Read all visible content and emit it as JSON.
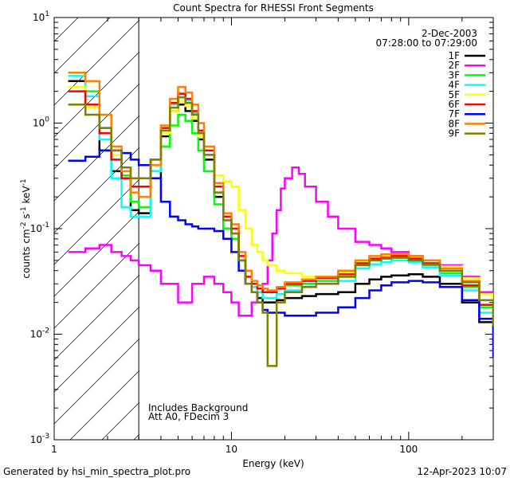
{
  "chart_data": {
    "type": "line",
    "title": "Count Spectra for RHESSI Front Segments",
    "xlabel": "Energy (keV)",
    "ylabel_parts": [
      "counts cm",
      "-2",
      " s",
      "-1",
      " keV",
      "-1"
    ],
    "xscale": "log",
    "yscale": "log",
    "xlim": [
      1,
      300
    ],
    "ylim": [
      0.001,
      10
    ],
    "x_ticks": [
      {
        "value": 1,
        "label": "1"
      },
      {
        "value": 10,
        "label": "10"
      },
      {
        "value": 100,
        "label": "100"
      }
    ],
    "y_ticks": [
      {
        "exp": -3,
        "base": "10",
        "sup": "-3"
      },
      {
        "exp": -2,
        "base": "10",
        "sup": "-2"
      },
      {
        "exp": -1,
        "base": "10",
        "sup": "-1"
      },
      {
        "exp": 0,
        "base": "10",
        "sup": "0"
      },
      {
        "exp": 1,
        "base": "10",
        "sup": "1"
      }
    ],
    "date": "2-Dec-2003",
    "time_range": "07:28:00 to 07:29:00",
    "annotations": [
      "Includes Background",
      "Att A0, FDecim 3"
    ],
    "hatched_region_end_kev": 3,
    "series": [
      {
        "name": "1F",
        "color": "#000000",
        "x": [
          1.2,
          1.5,
          1.8,
          2.1,
          2.4,
          2.7,
          3.0,
          3.5,
          4.0,
          4.5,
          5.0,
          5.5,
          6.0,
          6.5,
          7.0,
          8,
          9,
          10,
          11,
          12,
          13,
          14,
          15,
          16,
          18,
          20,
          25,
          30,
          40,
          50,
          60,
          70,
          80,
          100,
          120,
          150,
          200,
          250,
          300
        ],
        "y": [
          2.5,
          1.5,
          0.55,
          0.35,
          0.3,
          0.15,
          0.14,
          0.3,
          0.75,
          1.3,
          1.5,
          1.3,
          1.05,
          0.7,
          0.45,
          0.2,
          0.1,
          0.09,
          0.05,
          0.03,
          0.025,
          0.022,
          0.02,
          0.02,
          0.021,
          0.022,
          0.023,
          0.024,
          0.025,
          0.03,
          0.033,
          0.035,
          0.036,
          0.037,
          0.035,
          0.03,
          0.02,
          0.013,
          0.008
        ]
      },
      {
        "name": "2F",
        "color": "#ff00ff",
        "x": [
          1.2,
          1.5,
          1.8,
          2.1,
          2.4,
          2.7,
          3.0,
          3.5,
          4.0,
          5,
          6,
          7,
          8,
          9,
          10,
          11,
          12,
          13,
          14,
          15,
          16,
          17,
          18,
          19,
          20,
          22,
          24,
          26,
          30,
          35,
          40,
          50,
          60,
          70,
          80,
          100,
          120,
          150,
          200,
          250,
          300
        ],
        "y": [
          0.06,
          0.065,
          0.07,
          0.06,
          0.055,
          0.05,
          0.045,
          0.04,
          0.03,
          0.02,
          0.03,
          0.035,
          0.03,
          0.025,
          0.02,
          0.015,
          0.015,
          0.02,
          0.025,
          0.03,
          0.05,
          0.09,
          0.15,
          0.24,
          0.3,
          0.38,
          0.33,
          0.25,
          0.18,
          0.13,
          0.1,
          0.075,
          0.07,
          0.065,
          0.06,
          0.055,
          0.05,
          0.045,
          0.035,
          0.025,
          0.018
        ]
      },
      {
        "name": "3F",
        "color": "#00ff00",
        "x": [
          1.2,
          1.5,
          1.8,
          2.1,
          2.4,
          2.7,
          3.0,
          3.5,
          4.0,
          4.5,
          5.0,
          5.5,
          6.0,
          6.5,
          7.0,
          8,
          9,
          10,
          11,
          12,
          13,
          14,
          15,
          16,
          18,
          20,
          25,
          30,
          40,
          50,
          60,
          70,
          80,
          100,
          120,
          150,
          200,
          250,
          300
        ],
        "y": [
          3.0,
          2.0,
          0.9,
          0.45,
          0.32,
          0.18,
          0.16,
          0.35,
          0.6,
          0.95,
          1.2,
          1.05,
          0.8,
          0.55,
          0.35,
          0.17,
          0.1,
          0.08,
          0.05,
          0.035,
          0.03,
          0.027,
          0.025,
          0.025,
          0.027,
          0.029,
          0.03,
          0.032,
          0.035,
          0.045,
          0.05,
          0.052,
          0.053,
          0.05,
          0.045,
          0.038,
          0.028,
          0.018,
          0.01
        ]
      },
      {
        "name": "4F",
        "color": "#00ffff",
        "x": [
          1.2,
          1.5,
          1.8,
          2.1,
          2.4,
          2.7,
          3.0,
          3.5,
          4.0,
          4.5,
          5.0,
          5.5,
          6.0,
          6.5,
          7.0,
          8,
          9,
          10,
          11,
          12,
          13,
          14,
          15,
          16,
          18,
          20,
          25,
          30,
          40,
          50,
          60,
          70,
          80,
          100,
          120,
          150,
          200,
          250,
          300
        ],
        "y": [
          2.8,
          1.8,
          0.7,
          0.3,
          0.16,
          0.13,
          0.13,
          0.35,
          0.85,
          1.5,
          1.9,
          1.65,
          1.25,
          0.8,
          0.5,
          0.22,
          0.12,
          0.09,
          0.05,
          0.035,
          0.028,
          0.025,
          0.022,
          0.022,
          0.024,
          0.026,
          0.028,
          0.03,
          0.032,
          0.042,
          0.046,
          0.048,
          0.05,
          0.048,
          0.043,
          0.036,
          0.026,
          0.016,
          0.009
        ]
      },
      {
        "name": "5F",
        "color": "#ffff00",
        "x": [
          1.2,
          1.5,
          1.8,
          2.1,
          2.4,
          2.7,
          3.0,
          3.5,
          4.0,
          4.5,
          5.0,
          5.5,
          6.0,
          6.5,
          7.0,
          8,
          9,
          10,
          11,
          12,
          13,
          14,
          15,
          16,
          18,
          20,
          25,
          30,
          40,
          50,
          60,
          70,
          80,
          100,
          120,
          150,
          200,
          250,
          300
        ],
        "y": [
          2.2,
          1.4,
          0.8,
          0.5,
          0.35,
          0.3,
          0.3,
          0.4,
          0.8,
          1.3,
          1.6,
          1.45,
          1.1,
          0.75,
          0.5,
          0.32,
          0.28,
          0.25,
          0.15,
          0.1,
          0.07,
          0.06,
          0.05,
          0.045,
          0.04,
          0.038,
          0.035,
          0.035,
          0.038,
          0.048,
          0.052,
          0.055,
          0.056,
          0.054,
          0.05,
          0.044,
          0.034,
          0.024,
          0.014
        ]
      },
      {
        "name": "6F",
        "color": "#ff0000",
        "x": [
          1.2,
          1.5,
          1.8,
          2.1,
          2.4,
          2.7,
          3.0,
          3.5,
          4.0,
          4.5,
          5.0,
          5.5,
          6.0,
          6.5,
          7.0,
          8,
          9,
          10,
          11,
          12,
          13,
          14,
          15,
          16,
          18,
          20,
          25,
          30,
          40,
          50,
          60,
          70,
          80,
          100,
          120,
          150,
          200,
          250,
          300
        ],
        "y": [
          2.0,
          1.5,
          0.8,
          0.45,
          0.3,
          0.25,
          0.25,
          0.45,
          0.9,
          1.55,
          1.9,
          1.7,
          1.3,
          0.85,
          0.55,
          0.25,
          0.13,
          0.1,
          0.055,
          0.035,
          0.03,
          0.027,
          0.025,
          0.025,
          0.027,
          0.03,
          0.032,
          0.034,
          0.037,
          0.047,
          0.052,
          0.053,
          0.055,
          0.052,
          0.047,
          0.04,
          0.029,
          0.019,
          0.011
        ]
      },
      {
        "name": "7F",
        "color": "#0000ff",
        "x": [
          1.2,
          1.5,
          1.8,
          2.1,
          2.4,
          2.7,
          3.0,
          3.5,
          4.0,
          4.5,
          5.0,
          5.5,
          6.0,
          6.5,
          7.0,
          8,
          9,
          10,
          11,
          12,
          13,
          14,
          15,
          16,
          18,
          20,
          25,
          30,
          40,
          50,
          60,
          70,
          80,
          100,
          120,
          150,
          200,
          250,
          300
        ],
        "y": [
          0.44,
          0.48,
          0.55,
          0.55,
          0.52,
          0.45,
          0.4,
          0.3,
          0.18,
          0.13,
          0.12,
          0.11,
          0.105,
          0.1,
          0.1,
          0.095,
          0.08,
          0.06,
          0.04,
          0.03,
          0.025,
          0.02,
          0.017,
          0.016,
          0.016,
          0.015,
          0.015,
          0.016,
          0.018,
          0.022,
          0.026,
          0.029,
          0.031,
          0.032,
          0.031,
          0.028,
          0.021,
          0.014,
          0.006
        ]
      },
      {
        "name": "8F",
        "color": "#ff8000",
        "x": [
          1.2,
          1.5,
          1.8,
          2.1,
          2.4,
          2.7,
          3.0,
          3.5,
          4.0,
          4.5,
          5.0,
          5.5,
          6.0,
          6.5,
          7.0,
          8,
          9,
          10,
          11,
          12,
          13,
          14,
          15,
          16,
          18,
          20,
          25,
          30,
          40,
          50,
          60,
          70,
          80,
          100,
          120,
          150,
          200,
          250,
          300
        ],
        "y": [
          3.0,
          2.5,
          1.2,
          0.6,
          0.35,
          0.22,
          0.2,
          0.4,
          0.95,
          1.7,
          2.2,
          1.95,
          1.5,
          1.0,
          0.6,
          0.27,
          0.14,
          0.11,
          0.06,
          0.04,
          0.032,
          0.029,
          0.027,
          0.026,
          0.028,
          0.031,
          0.033,
          0.035,
          0.04,
          0.05,
          0.055,
          0.057,
          0.058,
          0.055,
          0.05,
          0.042,
          0.032,
          0.021,
          0.012
        ]
      },
      {
        "name": "9F",
        "color": "#808000",
        "x": [
          1.2,
          1.5,
          1.8,
          2.1,
          2.4,
          2.7,
          3.0,
          3.5,
          4.0,
          4.5,
          5.0,
          5.5,
          6.0,
          6.5,
          7.0,
          8,
          9,
          10,
          11,
          12,
          13,
          14,
          15,
          16,
          18,
          20,
          25,
          30,
          40,
          50,
          60,
          70,
          80,
          100,
          120,
          150,
          200,
          250,
          300
        ],
        "y": [
          1.5,
          1.2,
          0.9,
          0.55,
          0.38,
          0.3,
          0.3,
          0.45,
          0.85,
          1.4,
          1.75,
          1.55,
          1.2,
          0.8,
          0.5,
          0.22,
          0.12,
          0.09,
          0.05,
          0.03,
          0.025,
          0.02,
          0.016,
          0.005,
          0.02,
          0.025,
          0.028,
          0.03,
          0.035,
          0.045,
          0.05,
          0.052,
          0.053,
          0.05,
          0.046,
          0.04,
          0.031,
          0.021,
          0.012
        ]
      }
    ]
  },
  "footer": {
    "left": "Generated by hsi_min_spectra_plot.pro",
    "right": "12-Apr-2023 10:07"
  }
}
